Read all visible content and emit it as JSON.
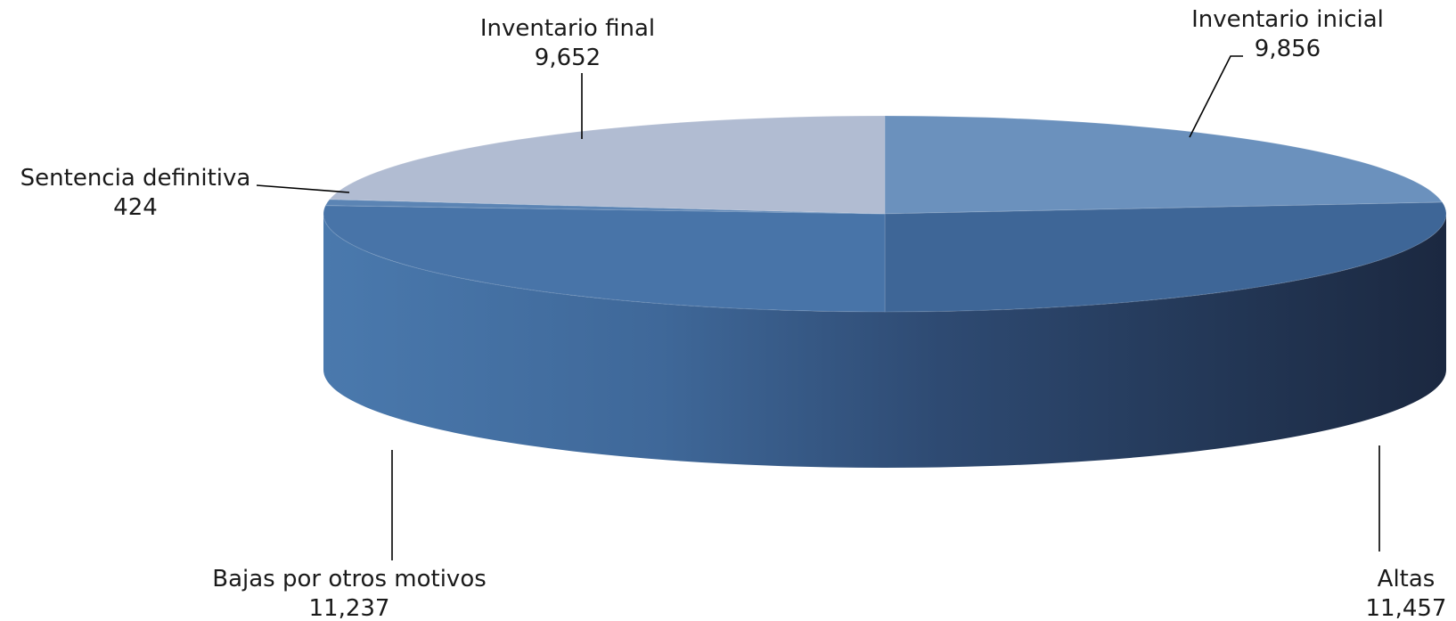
{
  "chart_data": {
    "type": "pie",
    "style": "3d",
    "title": "",
    "categories": [
      "Inventario inicial",
      "Altas",
      "Bajas por otros motivos",
      "Sentencia definitiva",
      "Inventario final"
    ],
    "values": [
      9856,
      11457,
      11237,
      424,
      9652
    ],
    "value_labels": [
      "9,856",
      "11,457",
      "11,237",
      "424",
      "9,652"
    ],
    "legend": "none",
    "data_labels": "category and value, outside with leader lines"
  },
  "colors": {
    "inventario_inicial": "#6b91bd",
    "altas_top": "#3e6697",
    "bajas_top": "#4874a8",
    "sentencia_top": "#5b84b4",
    "inventario_final": "#b1bcd2",
    "side_light": "#4674a6",
    "side_dark": "#1b2840"
  }
}
